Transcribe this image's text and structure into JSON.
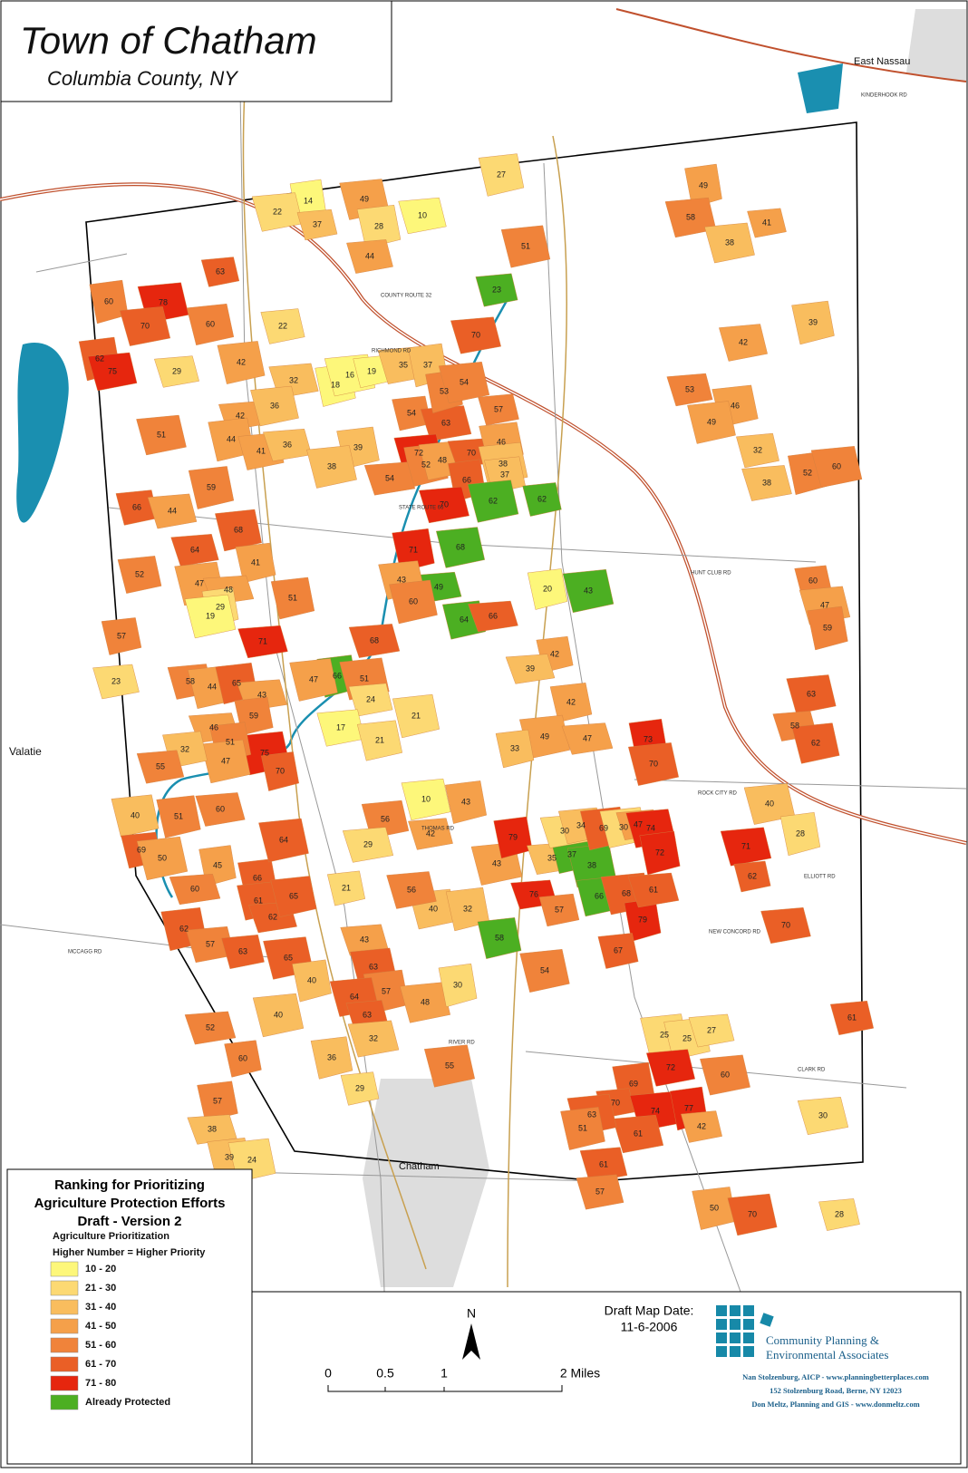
{
  "header": {
    "title": "Town of Chatham",
    "subtitle": "Columbia County, NY"
  },
  "places": [
    "East Nassau",
    "Valatie",
    "Chatham"
  ],
  "roads": [
    "COUNTY ROUTE 32",
    "HUNT CLUB RD",
    "ROCK CITY RD",
    "ELLIOTT RD",
    "NEW CONCORD RD",
    "RIVER RD",
    "MCCAGG RD",
    "THOMAS RD",
    "KINDERHOOK RD",
    "STATE ROUTE 66",
    "CLARK RD",
    "RICHMOND RD"
  ],
  "parcels": [
    14,
    22,
    37,
    49,
    28,
    10,
    44,
    27,
    51,
    23,
    70,
    60,
    78,
    63,
    70,
    62,
    75,
    29,
    60,
    42,
    22,
    32,
    18,
    16,
    19,
    35,
    37,
    51,
    42,
    36,
    44,
    41,
    36,
    39,
    38,
    54,
    63,
    53,
    54,
    57,
    72,
    52,
    48,
    70,
    46,
    38,
    37,
    54,
    66,
    62,
    62,
    70,
    71,
    68,
    49,
    43,
    60,
    64,
    66,
    20,
    43,
    42,
    68,
    66,
    51,
    24,
    17,
    21,
    21,
    39,
    42,
    49,
    33,
    47,
    73,
    70,
    66,
    44,
    59,
    68,
    64,
    52,
    47,
    41,
    48,
    29,
    19,
    57,
    71,
    51,
    47,
    23,
    58,
    44,
    65,
    43,
    59,
    75,
    70,
    46,
    51,
    47,
    32,
    55,
    40,
    51,
    60,
    69,
    50,
    45,
    60,
    66,
    64,
    61,
    62,
    65,
    62,
    57,
    63,
    65,
    40,
    52,
    60,
    40,
    57,
    38,
    39,
    24,
    56,
    42,
    10,
    43,
    29,
    21,
    43,
    79,
    35,
    37,
    38,
    66,
    76,
    40,
    32,
    56,
    57,
    68,
    79,
    61,
    67,
    54,
    58,
    43,
    63,
    57,
    64,
    63,
    48,
    30,
    32,
    29,
    55,
    36,
    30,
    34,
    69,
    30,
    47,
    74,
    72,
    71,
    62,
    40,
    28,
    70,
    61,
    25,
    25,
    27,
    72,
    69,
    60,
    70,
    74,
    77,
    61,
    42,
    63,
    51,
    61,
    57,
    50,
    70,
    28,
    30,
    49,
    58,
    41,
    38,
    39,
    42,
    53,
    46,
    49,
    32,
    38,
    52,
    60,
    60,
    47,
    59,
    63,
    58,
    62
  ],
  "legend": {
    "title_lines": [
      "Ranking for Prioritizing",
      "Agriculture Protection Efforts",
      "Draft - Version 2"
    ],
    "heading": "Agriculture Prioritization",
    "subheading": "Higher Number = Higher Priority",
    "classes": [
      {
        "label": "10 - 20",
        "color": "#fdf77a"
      },
      {
        "label": "21 - 30",
        "color": "#fcd973"
      },
      {
        "label": "31 - 40",
        "color": "#f9bd5e"
      },
      {
        "label": "41 - 50",
        "color": "#f5a04a"
      },
      {
        "label": "51 - 60",
        "color": "#f0833a"
      },
      {
        "label": "61 - 70",
        "color": "#ea5f26"
      },
      {
        "label": "71 - 80",
        "color": "#e6260e"
      },
      {
        "label": "Already Protected",
        "color": "#4caf22"
      }
    ]
  },
  "north": "N",
  "scale": [
    "0",
    "0.5",
    "1",
    "2 Miles"
  ],
  "date": {
    "label": "Draft Map Date:",
    "value": "11-6-2006"
  },
  "credits": {
    "org_lines": [
      "Community Planning &",
      "Environmental Associates"
    ],
    "contact_lines": [
      "Nan Stolzenburg, AICP - www.planningbetterplaces.com",
      "152 Stolzenburg Road, Berne, NY  12023",
      "Don Meltz, Planning and GIS - www.donmeltz.com"
    ]
  }
}
